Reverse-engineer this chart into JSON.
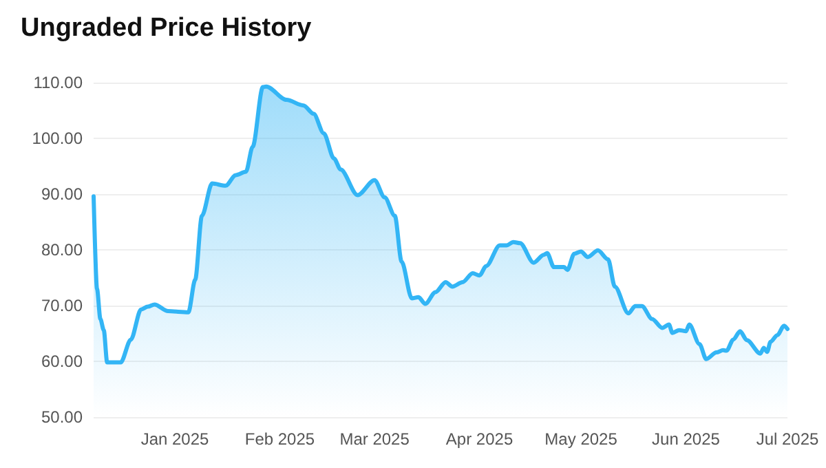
{
  "chart_data": {
    "type": "area",
    "title": "Ungraded Price History",
    "x": [
      "2024-12-08",
      "2024-12-09",
      "2024-12-10",
      "2024-12-11",
      "2024-12-12",
      "2024-12-16",
      "2024-12-19",
      "2024-12-22",
      "2024-12-24",
      "2024-12-26",
      "2024-12-30",
      "2025-01-05",
      "2025-01-07",
      "2025-01-09",
      "2025-01-12",
      "2025-01-16",
      "2025-01-19",
      "2025-01-22",
      "2025-01-24",
      "2025-01-27",
      "2025-01-28",
      "2025-02-03",
      "2025-02-08",
      "2025-02-11",
      "2025-02-14",
      "2025-02-17",
      "2025-02-19",
      "2025-02-24",
      "2025-03-01",
      "2025-03-04",
      "2025-03-07",
      "2025-03-09",
      "2025-03-12",
      "2025-03-14",
      "2025-03-16",
      "2025-03-19",
      "2025-03-22",
      "2025-03-24",
      "2025-03-27",
      "2025-03-30",
      "2025-04-01",
      "2025-04-03",
      "2025-04-07",
      "2025-04-09",
      "2025-04-11",
      "2025-04-13",
      "2025-04-17",
      "2025-04-20",
      "2025-04-21",
      "2025-04-23",
      "2025-04-26",
      "2025-04-27",
      "2025-04-29",
      "2025-05-01",
      "2025-05-03",
      "2025-05-06",
      "2025-05-09",
      "2025-05-11",
      "2025-05-15",
      "2025-05-17",
      "2025-05-19",
      "2025-05-22",
      "2025-05-25",
      "2025-05-27",
      "2025-05-28",
      "2025-05-30",
      "2025-06-01",
      "2025-06-02",
      "2025-06-05",
      "2025-06-07",
      "2025-06-10",
      "2025-06-12",
      "2025-06-13",
      "2025-06-15",
      "2025-06-17",
      "2025-06-19",
      "2025-06-23",
      "2025-06-24",
      "2025-06-25",
      "2025-06-26",
      "2025-06-28",
      "2025-06-30",
      "2025-07-01"
    ],
    "series": [
      {
        "color": "#33b5f5",
        "values": [
          89.6,
          73.0,
          67.6,
          65.6,
          59.8,
          59.8,
          63.9,
          69.3,
          69.8,
          70.2,
          69.0,
          68.8,
          74.6,
          86.1,
          91.9,
          91.5,
          93.4,
          94.0,
          98.5,
          109.2,
          109.3,
          106.9,
          105.9,
          104.4,
          100.9,
          96.4,
          94.4,
          89.8,
          92.5,
          89.4,
          86.1,
          77.9,
          71.3,
          71.5,
          70.3,
          72.4,
          74.2,
          73.4,
          74.2,
          75.8,
          75.4,
          77.1,
          80.8,
          80.8,
          81.4,
          81.2,
          77.7,
          79.1,
          79.4,
          76.9,
          76.9,
          76.4,
          79.3,
          79.7,
          78.7,
          79.9,
          78.3,
          73.4,
          68.6,
          69.9,
          69.9,
          67.6,
          66.0,
          66.6,
          65.1,
          65.6,
          65.4,
          66.6,
          63.1,
          60.4,
          61.6,
          62.0,
          61.9,
          63.9,
          65.4,
          63.8,
          61.4,
          62.4,
          61.7,
          63.5,
          64.7,
          66.4,
          65.8
        ]
      }
    ],
    "xlim": [
      "2024-12-08",
      "2025-07-01"
    ],
    "xticks": [
      {
        "value": "2025-01-01",
        "label": "Jan 2025"
      },
      {
        "value": "2025-02-01",
        "label": "Feb 2025"
      },
      {
        "value": "2025-03-01",
        "label": "Mar 2025"
      },
      {
        "value": "2025-04-01",
        "label": "Apr 2025"
      },
      {
        "value": "2025-05-01",
        "label": "May 2025"
      },
      {
        "value": "2025-06-01",
        "label": "Jun 2025"
      },
      {
        "value": "2025-07-01",
        "label": "Jul 2025"
      }
    ],
    "ylim": [
      50,
      110
    ],
    "yticks": [
      {
        "value": 50,
        "label": "50.00"
      },
      {
        "value": 60,
        "label": "60.00"
      },
      {
        "value": 70,
        "label": "70.00"
      },
      {
        "value": 80,
        "label": "80.00"
      },
      {
        "value": 90,
        "label": "90.00"
      },
      {
        "value": 100,
        "label": "100.00"
      },
      {
        "value": 110,
        "label": "110.00"
      }
    ],
    "grid": "y",
    "marker": "none",
    "line_style": "solid"
  }
}
